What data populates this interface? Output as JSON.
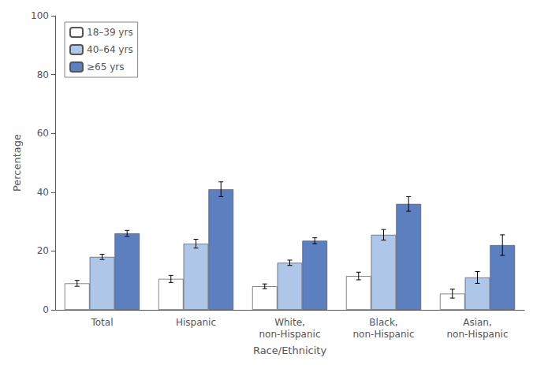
{
  "chart_data": {
    "type": "bar",
    "xlabel": "Race/Ethnicity",
    "ylabel": "Percentage",
    "categories": [
      "Total",
      "Hispanic",
      "White,\nnon-Hispanic",
      "Black,\nnon-Hispanic",
      "Asian,\nnon-Hispanic"
    ],
    "series": [
      {
        "name": "18–39 yrs",
        "color": "#ffffff",
        "values": [
          9.0,
          10.5,
          8.0,
          11.5,
          5.5
        ],
        "errors": [
          1.0,
          1.2,
          0.8,
          1.3,
          1.5
        ]
      },
      {
        "name": "40–64 yrs",
        "color": "#aec6e8",
        "values": [
          18.0,
          22.5,
          16.0,
          25.5,
          11.0
        ],
        "errors": [
          0.9,
          1.5,
          0.9,
          1.8,
          2.0
        ]
      },
      {
        "name": "≥65 yrs",
        "color": "#5b7fbf",
        "values": [
          26.0,
          41.0,
          23.5,
          36.0,
          22.0
        ],
        "errors": [
          1.0,
          2.5,
          1.0,
          2.5,
          3.5
        ]
      }
    ],
    "ylim": [
      0,
      100
    ],
    "yticks": [
      0,
      20,
      40,
      60,
      80,
      100
    ],
    "grid": false,
    "legend": "upper left"
  }
}
